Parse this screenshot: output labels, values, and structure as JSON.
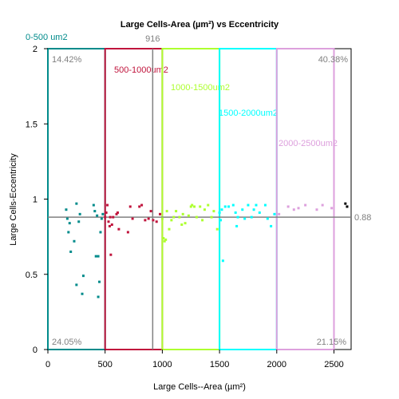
{
  "chart_data": {
    "type": "scatter",
    "title": "Large Cells-Area (µm²) vs Eccentricity",
    "xlabel": "Large Cells--Area (µm²)",
    "ylabel": "Large Cells-Eccentricity",
    "xlim": [
      0,
      2650
    ],
    "ylim": [
      0,
      2
    ],
    "xticks": [
      "0",
      "500",
      "1000",
      "1500",
      "2000",
      "2500"
    ],
    "yticks": [
      "0",
      "0.5",
      "1",
      "1.5",
      "2"
    ],
    "grid": false,
    "gates": [
      {
        "name": "0-500 um2",
        "x_min": 0,
        "x_max": 500,
        "color": "#008B8B"
      },
      {
        "name": "500-1000um2",
        "x_min": 500,
        "x_max": 1000,
        "color": "#C0143C"
      },
      {
        "name": "1000-1500um2",
        "x_min": 1000,
        "x_max": 1500,
        "color": "#ADFF2F"
      },
      {
        "name": "1500-2000um2",
        "x_min": 1500,
        "x_max": 2000,
        "color": "#00FFFF"
      },
      {
        "name": "2000-2500um2",
        "x_min": 2000,
        "x_max": 2500,
        "color": "#DDA0DD"
      }
    ],
    "quadrant": {
      "x_threshold": 916,
      "y_threshold": 0.88,
      "x_threshold_label": "916",
      "y_threshold_label": "0.88",
      "top_left": "14.42%",
      "top_right": "40.38%",
      "bottom_left": "24.05%",
      "bottom_right": "21.15%",
      "line_color": "#808080"
    },
    "series": [
      {
        "color": "#008B8B",
        "points": [
          [
            160,
            0.93
          ],
          [
            170,
            0.87
          ],
          [
            180,
            0.78
          ],
          [
            190,
            0.84
          ],
          [
            200,
            0.65
          ],
          [
            230,
            0.72
          ],
          [
            250,
            0.97
          ],
          [
            250,
            0.43
          ],
          [
            270,
            0.85
          ],
          [
            280,
            0.9
          ],
          [
            310,
            0.49
          ],
          [
            300,
            0.37
          ],
          [
            400,
            0.96
          ],
          [
            410,
            0.92
          ],
          [
            420,
            0.62
          ],
          [
            430,
            0.89
          ],
          [
            440,
            0.62
          ],
          [
            440,
            0.35
          ],
          [
            450,
            0.45
          ],
          [
            460,
            0.78
          ],
          [
            470,
            0.87
          ],
          [
            480,
            0.9
          ]
        ]
      },
      {
        "color": "#C0143C",
        "points": [
          [
            500,
            0.88
          ],
          [
            510,
            0.91
          ],
          [
            520,
            0.96
          ],
          [
            530,
            0.85
          ],
          [
            540,
            0.82
          ],
          [
            545,
            0.88
          ],
          [
            550,
            0.63
          ],
          [
            560,
            0.83
          ],
          [
            570,
            0.88
          ],
          [
            600,
            0.9
          ],
          [
            610,
            0.91
          ],
          [
            620,
            0.8
          ],
          [
            700,
            0.78
          ],
          [
            720,
            0.95
          ],
          [
            740,
            0.87
          ],
          [
            800,
            0.95
          ],
          [
            820,
            0.96
          ],
          [
            850,
            0.86
          ],
          [
            880,
            0.87
          ],
          [
            900,
            0.92
          ],
          [
            920,
            0.86
          ],
          [
            950,
            0.85
          ],
          [
            980,
            0.9
          ]
        ]
      },
      {
        "color": "#ADFF2F",
        "points": [
          [
            1000,
            0.87
          ],
          [
            1010,
            0.74
          ],
          [
            1020,
            0.72
          ],
          [
            1030,
            0.73
          ],
          [
            1040,
            0.92
          ],
          [
            1060,
            0.8
          ],
          [
            1080,
            0.86
          ],
          [
            1100,
            0.88
          ],
          [
            1120,
            0.92
          ],
          [
            1150,
            0.88
          ],
          [
            1170,
            0.83
          ],
          [
            1180,
            0.9
          ],
          [
            1200,
            0.84
          ],
          [
            1230,
            0.89
          ],
          [
            1250,
            0.95
          ],
          [
            1260,
            0.96
          ],
          [
            1280,
            0.95
          ],
          [
            1300,
            0.88
          ],
          [
            1330,
            0.95
          ],
          [
            1350,
            0.86
          ],
          [
            1370,
            0.93
          ],
          [
            1400,
            0.96
          ],
          [
            1430,
            0.88
          ],
          [
            1450,
            0.92
          ],
          [
            1480,
            0.8
          ]
        ]
      },
      {
        "color": "#00FFFF",
        "points": [
          [
            1500,
            0.91
          ],
          [
            1510,
            0.86
          ],
          [
            1520,
            0.93
          ],
          [
            1530,
            0.59
          ],
          [
            1550,
            0.95
          ],
          [
            1580,
            0.95
          ],
          [
            1620,
            0.96
          ],
          [
            1640,
            0.91
          ],
          [
            1650,
            0.82
          ],
          [
            1660,
            0.88
          ],
          [
            1700,
            0.93
          ],
          [
            1720,
            0.87
          ],
          [
            1750,
            0.96
          ],
          [
            1780,
            0.88
          ],
          [
            1800,
            0.93
          ],
          [
            1820,
            0.96
          ],
          [
            1850,
            0.91
          ],
          [
            1900,
            0.96
          ],
          [
            1920,
            0.87
          ],
          [
            1950,
            0.82
          ],
          [
            1980,
            0.9
          ]
        ]
      },
      {
        "color": "#DDA0DD",
        "points": [
          [
            2020,
            0.9
          ],
          [
            2100,
            0.95
          ],
          [
            2150,
            0.93
          ],
          [
            2190,
            0.94
          ],
          [
            2250,
            0.96
          ],
          [
            2350,
            0.93
          ],
          [
            2400,
            0.96
          ],
          [
            2480,
            0.94
          ]
        ]
      },
      {
        "color": "#000000",
        "points": [
          [
            2600,
            0.97
          ],
          [
            2615,
            0.95
          ]
        ]
      }
    ]
  }
}
